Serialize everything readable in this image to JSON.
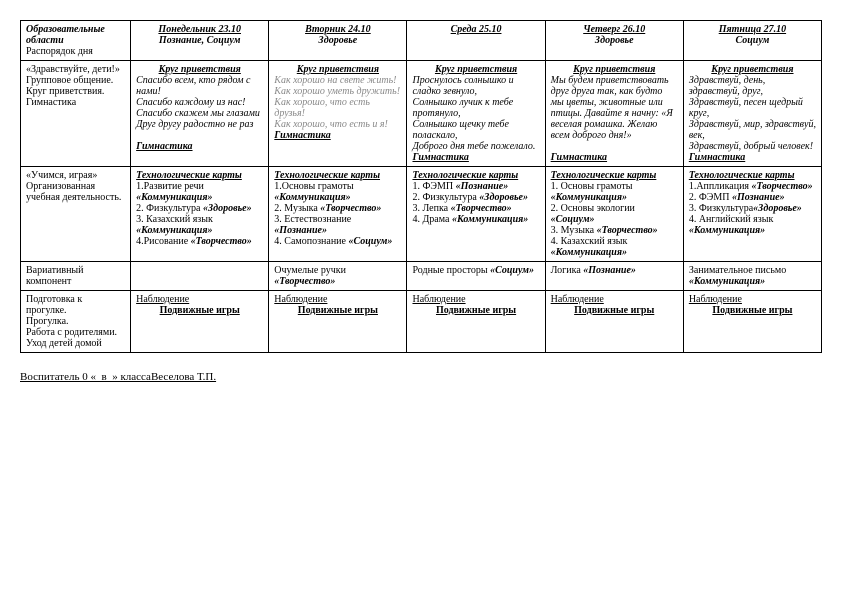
{
  "header": {
    "col0_line1": "Образовательные области",
    "col0_line2": "Распорядок дня",
    "days": [
      {
        "date": "Понедельник 23.10",
        "subject": "Познание, Социум"
      },
      {
        "date": "Вторник 24.10",
        "subject": "Здоровье"
      },
      {
        "date": "Среда 25.10",
        "subject": ""
      },
      {
        "date": "Четверг 26.10",
        "subject": "Здоровье"
      },
      {
        "date": "Пятница 27.10",
        "subject": "Социум"
      }
    ]
  },
  "row1": {
    "label_lines": [
      "«Здравствуйте, дети!»",
      " Групповое общение.",
      "Круг приветствия.",
      "Гимнастика"
    ],
    "greet_title": "Круг приветствия",
    "gym_title": "Гимнастика",
    "cells": [
      {
        "body": "Спасибо всем, кто рядом с нами!\nСпасибо каждому из нас!\nСпасибо скажем мы глазами\nДруг другу радостно не раз",
        "gray": false
      },
      {
        "body": "Как хорошо на свете жить!\nКак хорошо уметь дружить!\nКак хорошо, что есть друзья!\nКак хорошо, что есть и я!",
        "gray": true
      },
      {
        "body": "Проснулось солнышко и сладко зевнуло,\nСолнышко лучик к тебе протянуло,\nСолнышко щечку тебе поласкало,\nДоброго дня тебе пожелало.",
        "gray": false
      },
      {
        "body": "Мы будем приветствовать друг друга так, как будто мы цветы, животные или птицы. Давайте я начну: «Я веселая ромашка. Желаю всем доброго дня!»",
        "gray": false
      },
      {
        "body": "Здравствуй, день, здравствуй, друг,\nЗдравствуй, песен щедрый круг,\nЗдравствуй, мир, здравствуй, век,\nЗдравствуй, добрый человек!",
        "gray": false
      }
    ]
  },
  "row2": {
    "label_lines": [
      "«Учимся, играя»",
      "Организованная учебная деятельность."
    ],
    "tech_title": "Технологические карты",
    "cells": [
      "1.Развитие речи «Коммуникация»\n2. Физкультура «Здоровье»\n3. Казахский язык «Коммуникация»\n4.Рисование «Творчество»",
      "1.Основы грамоты «Коммуникация»\n2. Музыка «Творчество»\n3. Естествознание «Познание»\n4. Самопознание «Социум»",
      "1. ФЭМП «Познание»\n2. Физкультура «Здоровье»\n3. Лепка «Творчество»\n4. Драма «Коммуникация»",
      "1. Основы грамоты «Коммуникация»\n2. Основы экологии «Социум»\n3. Музыка «Творчество»\n4. Казахский язык «Коммуникация»",
      "1.Аппликация «Творчество»\n2. ФЭМП «Познание»\n3. Физкультура«Здоровье»\n4. Английский язык «Коммуникация»"
    ]
  },
  "row3": {
    "label": "Вариативный компонент",
    "cells": [
      "",
      "Очумелые ручки «Творчество»",
      "Родные просторы «Социум»",
      "Логика «Познание»",
      "Занимательное письмо «Коммуникация»"
    ]
  },
  "row4": {
    "label": "Подготовка к прогулке.\nПрогулка.\nРабота с родителями.\nУход детей домой",
    "obs": "Наблюдение",
    "games": "Подвижные игры"
  },
  "footer": "Воспитатель 0 «_в_» классаВеселова Т.П."
}
